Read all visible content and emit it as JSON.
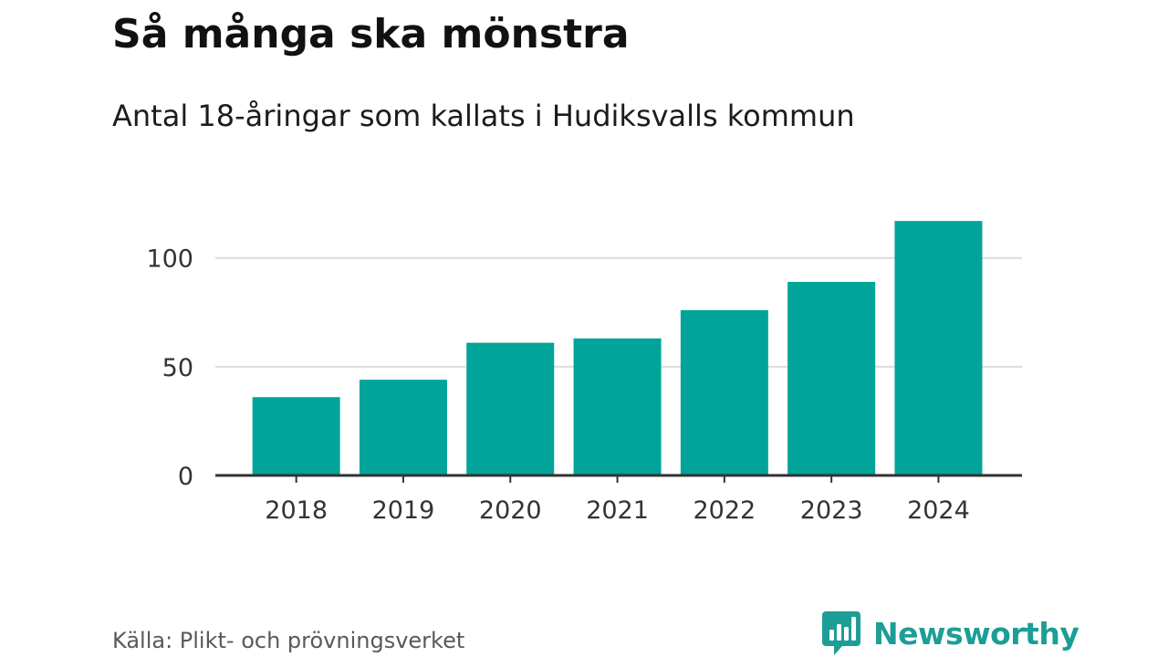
{
  "header": {
    "title": "Så många ska mönstra",
    "subtitle": "Antal 18-åringar som kallats i Hudiksvalls kommun"
  },
  "footer": {
    "source": "Källa: Plikt- och prövningsverket",
    "brand": "Newsworthy",
    "brand_icon": "bar-chart-speech-bubble-icon"
  },
  "colors": {
    "bar": "#00a499",
    "grid": "#dcdcdc",
    "axis": "#333333",
    "brand": "#1c9e96"
  },
  "chart_data": {
    "type": "bar",
    "categories": [
      "2018",
      "2019",
      "2020",
      "2021",
      "2022",
      "2023",
      "2024"
    ],
    "values": [
      36,
      44,
      61,
      63,
      76,
      89,
      117
    ],
    "ylim": [
      0,
      120
    ],
    "yticks": [
      0,
      50,
      100
    ],
    "ytick_labels": [
      "0",
      "50",
      "100"
    ],
    "grid": true,
    "legend": "none"
  }
}
